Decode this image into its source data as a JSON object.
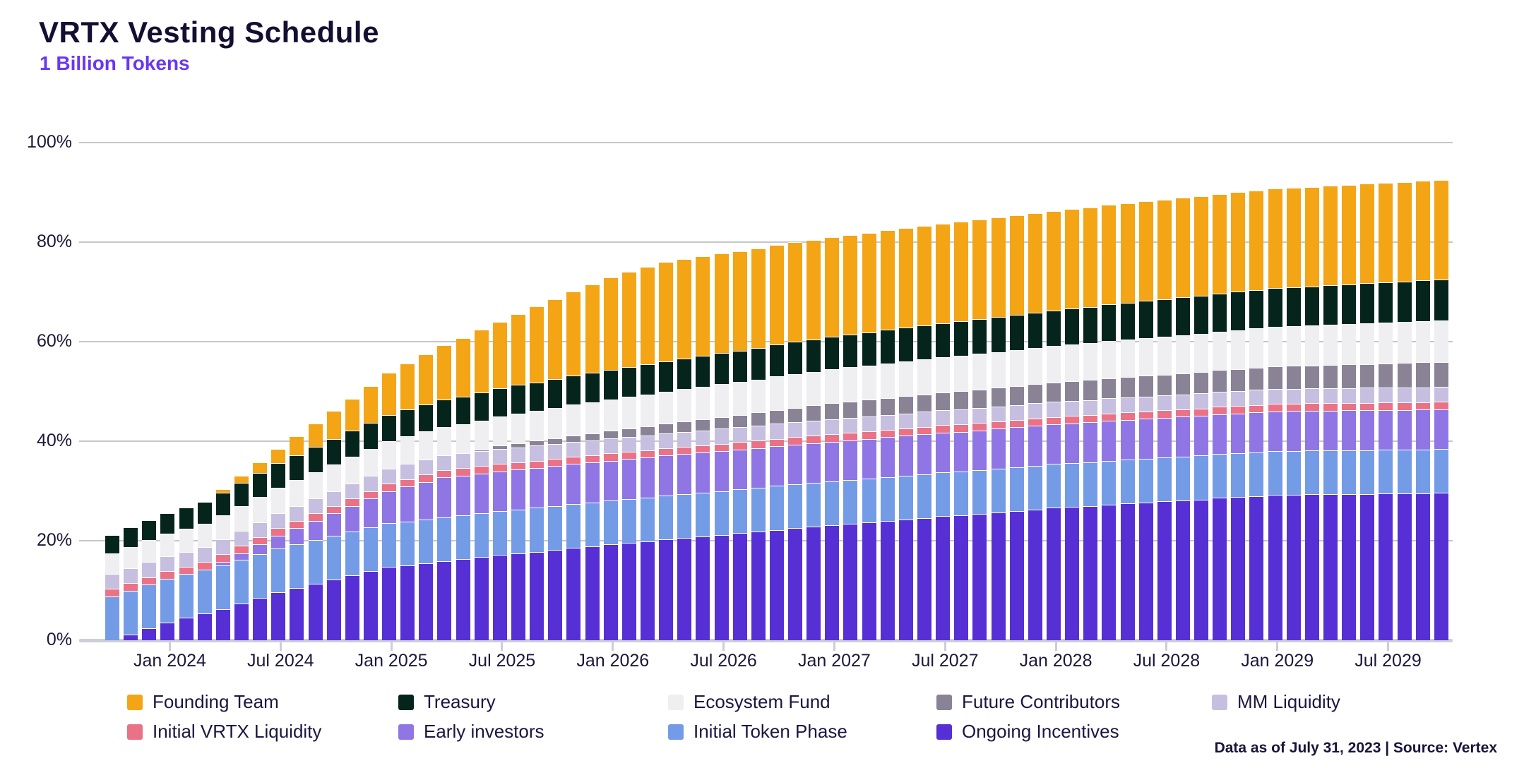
{
  "header": {
    "title": "VRTX Vesting Schedule",
    "subtitle": "1 Billion Tokens"
  },
  "footer": {
    "source_note": "Data as of July 31, 2023 | Source: Vertex"
  },
  "colors": {
    "title": "#150e31",
    "subtitle": "#6937f2",
    "axis_text": "#1d1739",
    "gridline": "#c6c6cc",
    "axis_line": "#cdced6",
    "background": "#ffffff"
  },
  "chart_data": {
    "type": "bar",
    "stacked": true,
    "title": "VRTX Vesting Schedule",
    "subtitle": "1 Billion Tokens",
    "xlabel": "",
    "ylabel": "",
    "unit": "percent of 1 billion tokens",
    "ylim": [
      0,
      100
    ],
    "grid": true,
    "y_ticks": [
      0,
      20,
      40,
      60,
      80,
      100
    ],
    "x_axis_tick_labels": [
      "Jan 2024",
      "Jul 2024",
      "Jan 2025",
      "Jul 2025",
      "Jan 2026",
      "Jul 2026",
      "Jan 2027",
      "Jul 2027",
      "Jan 2028",
      "Jul 2028",
      "Jan 2029",
      "Jul 2029"
    ],
    "x_axis_tick_month_indices": [
      3,
      9,
      15,
      21,
      27,
      33,
      39,
      45,
      51,
      57,
      63,
      69
    ],
    "x_months": [
      "Oct 2023",
      "Nov 2023",
      "Dec 2023",
      "Jan 2024",
      "Feb 2024",
      "Mar 2024",
      "Apr 2024",
      "May 2024",
      "Jun 2024",
      "Jul 2024",
      "Aug 2024",
      "Sep 2024",
      "Oct 2024",
      "Nov 2024",
      "Dec 2024",
      "Jan 2025",
      "Feb 2025",
      "Mar 2025",
      "Apr 2025",
      "May 2025",
      "Jun 2025",
      "Jul 2025",
      "Aug 2025",
      "Sep 2025",
      "Oct 2025",
      "Nov 2025",
      "Dec 2025",
      "Jan 2026",
      "Feb 2026",
      "Mar 2026",
      "Apr 2026",
      "May 2026",
      "Jun 2026",
      "Jul 2026",
      "Aug 2026",
      "Sep 2026",
      "Oct 2026",
      "Nov 2026",
      "Dec 2026",
      "Jan 2027",
      "Feb 2027",
      "Mar 2027",
      "Apr 2027",
      "May 2027",
      "Jun 2027",
      "Jul 2027",
      "Aug 2027",
      "Sep 2027",
      "Oct 2027",
      "Nov 2027",
      "Dec 2027",
      "Jan 2028",
      "Feb 2028",
      "Mar 2028",
      "Apr 2028",
      "May 2028",
      "Jun 2028",
      "Jul 2028",
      "Aug 2028",
      "Sep 2028",
      "Oct 2028",
      "Nov 2028",
      "Dec 2028",
      "Jan 2029",
      "Feb 2029",
      "Mar 2029",
      "Apr 2029",
      "May 2029",
      "Jun 2029",
      "Jul 2029",
      "Aug 2029",
      "Sep 2029",
      "Oct 2029"
    ],
    "series": [
      {
        "name": "Ongoing Incentives",
        "color": "#5630d4",
        "values": [
          0,
          1.2,
          2.4,
          3.6,
          4.5,
          5.4,
          6.3,
          7.4,
          8.5,
          9.6,
          10.45,
          11.3,
          12.15,
          13,
          13.85,
          14.7,
          15.1,
          15.5,
          15.9,
          16.3,
          16.7,
          17.1,
          17.5,
          17.8,
          18.2,
          18.6,
          18.9,
          19.3,
          19.6,
          19.9,
          20.3,
          20.6,
          20.9,
          21.2,
          21.5,
          21.8,
          22.2,
          22.5,
          22.8,
          23.1,
          23.4,
          23.7,
          24,
          24.3,
          24.6,
          24.9,
          25.1,
          25.4,
          25.7,
          26,
          26.3,
          26.6,
          26.8,
          27,
          27.3,
          27.5,
          27.7,
          27.9,
          28.1,
          28.3,
          28.6,
          28.8,
          29,
          29.2,
          29.25,
          29.3,
          29.33,
          29.38,
          29.42,
          29.47,
          29.5,
          29.55,
          29.6
        ]
      },
      {
        "name": "Initial Token Phase",
        "color": "#749be6",
        "values": [
          8.8,
          8.8,
          8.8,
          8.8,
          8.8,
          8.8,
          8.8,
          8.8,
          8.8,
          8.8,
          8.8,
          8.8,
          8.8,
          8.8,
          8.8,
          8.8,
          8.8,
          8.8,
          8.8,
          8.8,
          8.8,
          8.8,
          8.8,
          8.8,
          8.8,
          8.8,
          8.8,
          8.8,
          8.8,
          8.8,
          8.8,
          8.8,
          8.8,
          8.8,
          8.8,
          8.8,
          8.8,
          8.8,
          8.8,
          8.8,
          8.8,
          8.8,
          8.8,
          8.8,
          8.8,
          8.8,
          8.8,
          8.8,
          8.8,
          8.8,
          8.8,
          8.8,
          8.8,
          8.8,
          8.8,
          8.8,
          8.8,
          8.8,
          8.8,
          8.8,
          8.8,
          8.8,
          8.8,
          8.8,
          8.8,
          8.8,
          8.8,
          8.8,
          8.8,
          8.8,
          8.8,
          8.8,
          8.8
        ]
      },
      {
        "name": "Early investors",
        "color": "#8f76e4",
        "values": [
          0,
          0,
          0,
          0,
          0,
          0,
          0.65,
          1.3,
          1.95,
          2.6,
          3.25,
          3.9,
          4.55,
          5.2,
          5.85,
          6.5,
          7,
          7.5,
          8,
          8,
          8,
          8,
          8,
          8,
          8,
          8,
          8,
          8,
          8,
          8,
          8,
          8,
          8,
          8,
          8,
          8,
          8,
          8,
          8,
          8,
          8,
          8,
          8,
          8,
          8,
          8,
          8,
          8,
          8,
          8,
          8,
          8,
          8,
          8,
          8,
          8,
          8,
          8,
          8,
          8,
          8,
          8,
          8,
          8,
          8,
          8,
          8,
          8,
          8,
          8,
          8,
          8,
          8
        ]
      },
      {
        "name": "Initial VRTX Liquidity",
        "color": "#ea7286",
        "values": [
          1.5,
          1.5,
          1.5,
          1.5,
          1.5,
          1.5,
          1.5,
          1.5,
          1.5,
          1.5,
          1.5,
          1.5,
          1.5,
          1.5,
          1.5,
          1.5,
          1.5,
          1.5,
          1.5,
          1.5,
          1.5,
          1.5,
          1.5,
          1.5,
          1.5,
          1.5,
          1.5,
          1.5,
          1.5,
          1.5,
          1.5,
          1.5,
          1.5,
          1.5,
          1.5,
          1.5,
          1.5,
          1.5,
          1.5,
          1.5,
          1.5,
          1.5,
          1.5,
          1.5,
          1.5,
          1.5,
          1.5,
          1.5,
          1.5,
          1.5,
          1.5,
          1.5,
          1.5,
          1.5,
          1.5,
          1.5,
          1.5,
          1.5,
          1.5,
          1.5,
          1.5,
          1.5,
          1.5,
          1.5,
          1.5,
          1.5,
          1.5,
          1.5,
          1.5,
          1.5,
          1.5,
          1.5,
          1.5
        ]
      },
      {
        "name": "MM Liquidity",
        "color": "#c7bfe0",
        "values": [
          3,
          3,
          3,
          3,
          3,
          3,
          3,
          3,
          3,
          3,
          3,
          3,
          3,
          3,
          3,
          3,
          3,
          3,
          3,
          3,
          3,
          3,
          3,
          3,
          3,
          3,
          3,
          3,
          3,
          3,
          3,
          3,
          3,
          3,
          3,
          3,
          3,
          3,
          3,
          3,
          3,
          3,
          3,
          3,
          3,
          3,
          3,
          3,
          3,
          3,
          3,
          3,
          3,
          3,
          3,
          3,
          3,
          3,
          3,
          3,
          3,
          3,
          3,
          3,
          3,
          3,
          3,
          3,
          3,
          3,
          3,
          3,
          3
        ]
      },
      {
        "name": "Future Contributors",
        "color": "#8a8295",
        "values": [
          0,
          0,
          0,
          0,
          0,
          0,
          0,
          0,
          0,
          0,
          0,
          0,
          0,
          0,
          0,
          0,
          0,
          0,
          0,
          0,
          0.35,
          0.7,
          0.84,
          0.98,
          1.12,
          1.26,
          1.4,
          1.54,
          1.68,
          1.82,
          1.96,
          2.1,
          2.24,
          2.38,
          2.52,
          2.66,
          2.8,
          2.94,
          3.08,
          3.22,
          3.28,
          3.33,
          3.39,
          3.44,
          3.5,
          3.55,
          3.61,
          3.66,
          3.72,
          3.77,
          3.83,
          3.88,
          3.94,
          3.99,
          4.05,
          4.1,
          4.16,
          4.21,
          4.27,
          4.32,
          4.38,
          4.43,
          4.49,
          4.54,
          4.6,
          4.65,
          4.71,
          4.76,
          4.82,
          4.87,
          4.93,
          4.98,
          5.04
        ]
      },
      {
        "name": "Ecosystem Fund",
        "color": "#efeef1",
        "values": [
          4.2,
          4.3,
          4.4,
          4.5,
          4.6,
          4.7,
          4.8,
          4.9,
          5,
          5.1,
          5.17,
          5.23,
          5.3,
          5.37,
          5.43,
          5.5,
          5.57,
          5.64,
          5.7,
          5.77,
          5.84,
          5.9,
          5.97,
          6.04,
          6.1,
          6.17,
          6.24,
          6.3,
          6.34,
          6.39,
          6.43,
          6.48,
          6.52,
          6.56,
          6.61,
          6.65,
          6.7,
          6.74,
          6.79,
          6.83,
          6.87,
          6.92,
          6.96,
          7.01,
          7.05,
          7.1,
          7.14,
          7.18,
          7.23,
          7.27,
          7.32,
          7.36,
          7.41,
          7.45,
          7.5,
          7.54,
          7.58,
          7.63,
          7.67,
          7.72,
          7.76,
          7.81,
          7.85,
          7.89,
          7.94,
          7.98,
          8.03,
          8.07,
          8.12,
          8.16,
          8.2,
          8.25,
          8.29
        ]
      },
      {
        "name": "Treasury",
        "color": "#05251c",
        "values": [
          3.7,
          3.84,
          3.99,
          4.13,
          4.28,
          4.42,
          4.57,
          4.71,
          4.86,
          5,
          5.05,
          5.1,
          5.16,
          5.21,
          5.26,
          5.31,
          5.36,
          5.42,
          5.47,
          5.52,
          5.57,
          5.62,
          5.68,
          5.73,
          5.78,
          5.83,
          5.88,
          5.94,
          5.99,
          6.04,
          6.09,
          6.14,
          6.2,
          6.25,
          6.3,
          6.35,
          6.4,
          6.46,
          6.51,
          6.56,
          6.61,
          6.66,
          6.72,
          6.77,
          6.82,
          6.87,
          6.92,
          6.98,
          7.03,
          7.08,
          7.13,
          7.18,
          7.24,
          7.29,
          7.34,
          7.39,
          7.44,
          7.5,
          7.55,
          7.6,
          7.65,
          7.7,
          7.76,
          7.81,
          7.86,
          7.91,
          7.96,
          8.02,
          8.07,
          8.12,
          8.17,
          8.22,
          8.28
        ]
      },
      {
        "name": "Founding Team",
        "color": "#f3a516",
        "values": [
          0,
          0,
          0,
          0,
          0,
          0,
          0.7,
          1.45,
          2.2,
          2.9,
          3.8,
          4.7,
          5.6,
          6.5,
          7.45,
          8.4,
          9.25,
          10.1,
          10.95,
          11.8,
          12.6,
          13.4,
          14.3,
          15.2,
          16.05,
          16.9,
          17.75,
          18.6,
          19.1,
          19.6,
          20,
          20,
          20,
          20,
          20,
          20,
          20,
          20,
          20,
          20,
          20,
          20,
          20,
          20,
          20,
          20,
          20,
          20,
          20,
          20,
          20,
          20,
          20,
          20,
          20,
          20,
          20,
          20,
          20,
          20,
          20,
          20,
          20,
          20,
          20,
          20,
          20,
          20,
          20,
          20,
          20,
          20,
          20
        ]
      }
    ],
    "legend_rows": [
      [
        "Founding Team",
        "Treasury",
        "Ecosystem Fund",
        "Future Contributors",
        "MM Liquidity"
      ],
      [
        "Initial VRTX Liquidity",
        "Early investors",
        "Initial Token Phase",
        "Ongoing Incentives"
      ]
    ],
    "legend_position": "bottom"
  }
}
